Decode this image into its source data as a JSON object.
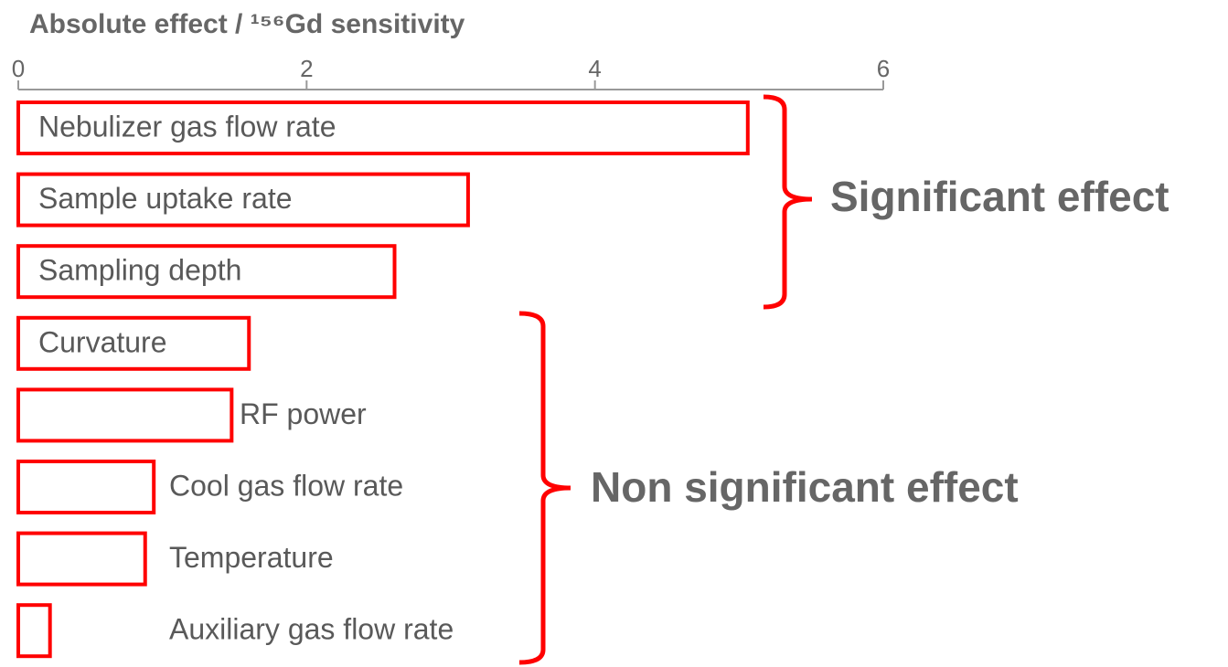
{
  "chart_data": {
    "type": "barh",
    "title": "Absolute effect / ¹⁵⁶Gd sensitivity",
    "categories": [
      "Nebulizer gas flow rate",
      "Sample uptake rate",
      "Sampling depth",
      "Curvature",
      "RF power",
      "Cool gas flow rate",
      "Temperature",
      "Auxiliary gas flow rate"
    ],
    "values": [
      5.06,
      3.12,
      2.61,
      1.6,
      1.48,
      0.94,
      0.88,
      0.22
    ],
    "color": "#ff0000",
    "xlim": [
      0,
      6
    ],
    "xticks": [
      0,
      2,
      4,
      6
    ],
    "annotations": [
      "Significant effect",
      "Non significant effect"
    ]
  }
}
